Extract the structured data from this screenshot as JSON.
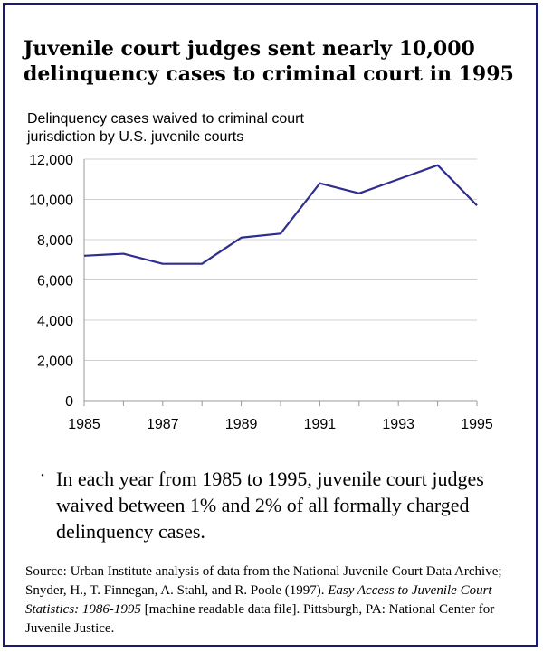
{
  "title": "Juvenile court judges sent nearly 10,000 delinquency cases to criminal court in 1995",
  "chart_data": {
    "type": "line",
    "title": "Juvenile court judges sent nearly 10,000 delinquency cases to criminal court in 1995",
    "ylabel": "Delinquency cases waived to criminal court jurisdiction by U.S. juvenile courts",
    "xlabel": "",
    "x": [
      1985,
      1986,
      1987,
      1988,
      1989,
      1990,
      1991,
      1992,
      1993,
      1994,
      1995
    ],
    "values": [
      7200,
      7300,
      6800,
      6800,
      8100,
      8300,
      10800,
      10300,
      11000,
      11700,
      9700
    ],
    "ylim": [
      0,
      12000
    ],
    "xlim": [
      1985,
      1995
    ],
    "y_ticks": [
      "0",
      "2,000",
      "4,000",
      "6,000",
      "8,000",
      "10,000",
      "12,000"
    ],
    "x_tick_labels": [
      "1985",
      "1987",
      "1989",
      "1991",
      "1993",
      "1995"
    ],
    "grid": true,
    "line_color": "#2e2e8f"
  },
  "note": {
    "bullet": "·",
    "text": "In each year from 1985 to 1995, juvenile court judges waived between 1% and 2% of all formally charged delinquency cases."
  },
  "source": {
    "part1": "Source: Urban Institute analysis of data from the National Juvenile Court Data Archive; Snyder, H., T. Finnegan, A. Stahl, and R. Poole (1997).",
    "italic": "Easy Access to Juvenile Court Statistics: 1986-1995",
    "part2": "[machine readable data file]. Pittsburgh, PA: National Center for Juvenile Justice."
  }
}
